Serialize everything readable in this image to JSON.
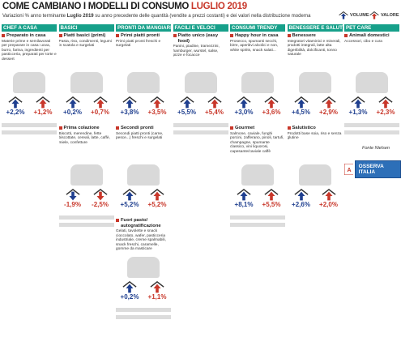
{
  "header": {
    "title": "COME CAMBIANO I MODELLI DI CONSUMO",
    "title_highlight": "LUGLIO 2019",
    "subtitle_before": "Variazioni % anno terminante ",
    "subtitle_bold": "Luglio 2019",
    "subtitle_after": " su anno precedente delle quantità (vendite a prezzi costanti) e dei valori nella distribuzione moderna"
  },
  "legend": [
    {
      "name": "VOLUME",
      "color": "#1f3f8f"
    },
    {
      "name": "VALORE",
      "color": "#c8372a"
    }
  ],
  "columns": [
    {
      "header": "CHEF A CASA",
      "cards": [
        {
          "title": "Preparato in casa",
          "description": "Materie prime e semilavorati per preparare in casa: uova, burro, farina, ingredienti per pasticceria, preparati per torte e dessert",
          "values": [
            2.2,
            1.2
          ],
          "value_labels": [
            "+2,2%",
            "+1,2%"
          ]
        }
      ]
    },
    {
      "header": "BASICI",
      "cards": [
        {
          "title": "Piatti basici (primi)",
          "description": "Pasta, riso, condimenti, legumi in scatola e surgelati",
          "values": [
            0.2,
            0.7
          ],
          "value_labels": [
            "+0,2%",
            "+0,7%"
          ]
        },
        {
          "title": "Prima colazione",
          "description": "Biscotti, merendine, fette biscottate, cereali, latte, caffè, miele, confetture",
          "values": [
            -1.9,
            -2.5
          ],
          "value_labels": [
            "-1,9%",
            "-2,5%"
          ]
        }
      ]
    },
    {
      "header": "PRONTI DA MANGIARE",
      "cards": [
        {
          "title": "Primi piatti pronti",
          "description": "Primi piatti pronti freschi e surgelati",
          "values": [
            3.8,
            3.5
          ],
          "value_labels": [
            "+3,8%",
            "+3,5%"
          ]
        },
        {
          "title": "Secondi pronti",
          "description": "Secondi piatti pronti (carne, pesce...) freschi e surgelati",
          "values": [
            5.2,
            5.2
          ],
          "value_labels": [
            "+5,2%",
            "+5,2%"
          ]
        },
        {
          "title": "Fuori pasto/ autogratificazione",
          "description": "Gelati, tavolette e snack cioccolato, wafer, pasticceria industriale, creme spalmabili, snack freschi, caramelle, gomme da masticare",
          "values": [
            0.2,
            1.1
          ],
          "value_labels": [
            "+0,2%",
            "+1,1%"
          ]
        }
      ]
    },
    {
      "header": "FACILI E VELOCI",
      "cards": [
        {
          "title": "Piatto unico (easy food)",
          "description": "Panini, piadine, tramezzini, hamburger, wurstel, salse, pizze e focacce",
          "values": [
            5.5,
            5.4
          ],
          "value_labels": [
            "+5,5%",
            "+5,4%"
          ]
        }
      ]
    },
    {
      "header": "CONSUMI TRENDY",
      "cards": [
        {
          "title": "Happy hour in casa",
          "description": "Prosecco, spumanti secchi, birre, aperitivi alcolici e non, white spirits, snack salati...",
          "values": [
            3.0,
            3.6
          ],
          "value_labels": [
            "+3,0%",
            "+3,6%"
          ]
        },
        {
          "title": "Gourmet",
          "description": "Salmone, caviale, funghi porcini, zafferano, pinoli, tartufi, champagne, spumante classico, vini liquorosi, capesante/caviale caffè",
          "values": [
            8.1,
            5.5
          ],
          "value_labels": [
            "+8,1%",
            "+5,5%"
          ]
        }
      ]
    },
    {
      "header": "BENESSERE E SALUTE",
      "cards": [
        {
          "title": "Benessere",
          "description": "Integratori vitaminici e minerali, prodotti integrali, latte alta digeribilità, dolcificanti, tonno naturale",
          "values": [
            4.5,
            2.9
          ],
          "value_labels": [
            "+4,5%",
            "+2,9%"
          ]
        },
        {
          "title": "Salutistico",
          "description": "Prodotti base soia, riso e senza glutine",
          "values": [
            2.6,
            2.0
          ],
          "value_labels": [
            "+2,6%",
            "+2,0%"
          ]
        }
      ]
    },
    {
      "header": "PET CARE",
      "cards": [
        {
          "title": "Animali domestici",
          "description": "Accessori, cibo e cura",
          "values": [
            1.3,
            2.3
          ],
          "value_labels": [
            "+1,3%",
            "+2,3%"
          ]
        }
      ]
    }
  ],
  "source": "Fonte Nielsen",
  "logo": "OSSERVA ITALIA"
}
